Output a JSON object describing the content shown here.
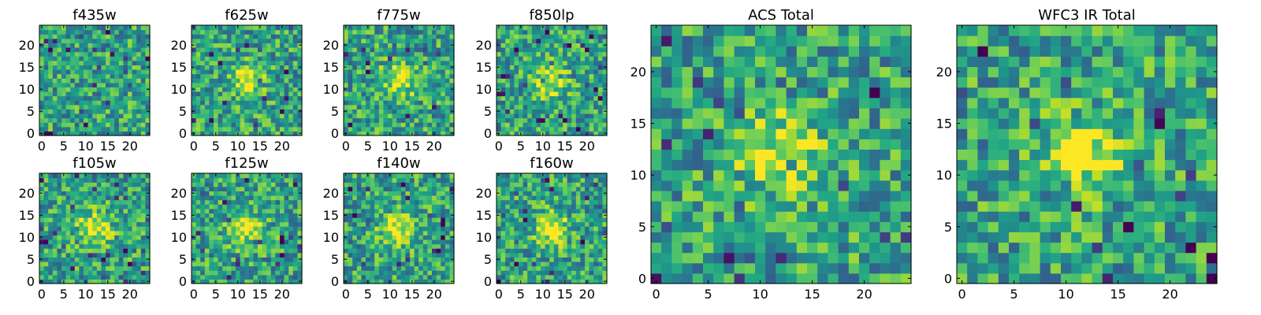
{
  "chart_data": [
    {
      "type": "heatmap",
      "title": "f435w",
      "colormap": "viridis",
      "grid_size": 25,
      "xlim": [
        0,
        24
      ],
      "ylim": [
        0,
        24
      ],
      "xticks": [
        0,
        5,
        10,
        15,
        20
      ],
      "yticks": [
        0,
        5,
        10,
        15,
        20
      ],
      "xtick_labels": [
        "0",
        "5",
        "10",
        "15",
        "20"
      ],
      "ytick_labels": [
        "0",
        "5",
        "10",
        "15",
        "20"
      ],
      "source_peak": null
    },
    {
      "type": "heatmap",
      "title": "f625w",
      "colormap": "viridis",
      "grid_size": 25,
      "xlim": [
        0,
        24
      ],
      "ylim": [
        0,
        24
      ],
      "xticks": [
        0,
        5,
        10,
        15,
        20
      ],
      "yticks": [
        0,
        5,
        10,
        15,
        20
      ],
      "xtick_labels": [
        "0",
        "5",
        "10",
        "15",
        "20"
      ],
      "ytick_labels": [
        "0",
        "5",
        "10",
        "15",
        "20"
      ],
      "source_peak": [
        12,
        12
      ]
    },
    {
      "type": "heatmap",
      "title": "f775w",
      "colormap": "viridis",
      "grid_size": 25,
      "xlim": [
        0,
        24
      ],
      "ylim": [
        0,
        24
      ],
      "xticks": [
        0,
        5,
        10,
        15,
        20
      ],
      "yticks": [
        0,
        5,
        10,
        15,
        20
      ],
      "xtick_labels": [
        "0",
        "5",
        "10",
        "15",
        "20"
      ],
      "ytick_labels": [
        "0",
        "5",
        "10",
        "15",
        "20"
      ],
      "source_peak": [
        12,
        12
      ]
    },
    {
      "type": "heatmap",
      "title": "f850lp",
      "colormap": "viridis",
      "grid_size": 25,
      "xlim": [
        0,
        24
      ],
      "ylim": [
        0,
        24
      ],
      "xticks": [
        0,
        5,
        10,
        15,
        20
      ],
      "yticks": [
        0,
        5,
        10,
        15,
        20
      ],
      "xtick_labels": [
        "0",
        "5",
        "10",
        "15",
        "20"
      ],
      "ytick_labels": [
        "0",
        "5",
        "10",
        "15",
        "20"
      ],
      "source_peak": [
        12,
        12
      ]
    },
    {
      "type": "heatmap",
      "title": "f105w",
      "colormap": "viridis",
      "grid_size": 25,
      "xlim": [
        0,
        24
      ],
      "ylim": [
        0,
        24
      ],
      "xticks": [
        0,
        5,
        10,
        15,
        20
      ],
      "yticks": [
        0,
        5,
        10,
        15,
        20
      ],
      "xtick_labels": [
        "0",
        "5",
        "10",
        "15",
        "20"
      ],
      "ytick_labels": [
        "0",
        "5",
        "10",
        "15",
        "20"
      ],
      "source_peak": [
        12,
        12
      ]
    },
    {
      "type": "heatmap",
      "title": "f125w",
      "colormap": "viridis",
      "grid_size": 25,
      "xlim": [
        0,
        24
      ],
      "ylim": [
        0,
        24
      ],
      "xticks": [
        0,
        5,
        10,
        15,
        20
      ],
      "yticks": [
        0,
        5,
        10,
        15,
        20
      ],
      "xtick_labels": [
        "0",
        "5",
        "10",
        "15",
        "20"
      ],
      "ytick_labels": [
        "0",
        "5",
        "10",
        "15",
        "20"
      ],
      "source_peak": [
        12,
        12
      ]
    },
    {
      "type": "heatmap",
      "title": "f140w",
      "colormap": "viridis",
      "grid_size": 25,
      "xlim": [
        0,
        24
      ],
      "ylim": [
        0,
        24
      ],
      "xticks": [
        0,
        5,
        10,
        15,
        20
      ],
      "yticks": [
        0,
        5,
        10,
        15,
        20
      ],
      "xtick_labels": [
        "0",
        "5",
        "10",
        "15",
        "20"
      ],
      "ytick_labels": [
        "0",
        "5",
        "10",
        "15",
        "20"
      ],
      "source_peak": [
        12,
        12
      ]
    },
    {
      "type": "heatmap",
      "title": "f160w",
      "colormap": "viridis",
      "grid_size": 25,
      "xlim": [
        0,
        24
      ],
      "ylim": [
        0,
        24
      ],
      "xticks": [
        0,
        5,
        10,
        15,
        20
      ],
      "yticks": [
        0,
        5,
        10,
        15,
        20
      ],
      "xtick_labels": [
        "0",
        "5",
        "10",
        "15",
        "20"
      ],
      "ytick_labels": [
        "0",
        "5",
        "10",
        "15",
        "20"
      ],
      "source_peak": [
        12,
        12
      ]
    },
    {
      "type": "heatmap",
      "title": "ACS Total",
      "colormap": "viridis",
      "grid_size": 25,
      "xlim": [
        0,
        24
      ],
      "ylim": [
        0,
        24
      ],
      "xticks": [
        0,
        5,
        10,
        15,
        20
      ],
      "yticks": [
        0,
        5,
        10,
        15,
        20
      ],
      "xtick_labels": [
        "0",
        "5",
        "10",
        "15",
        "20"
      ],
      "ytick_labels": [
        "0",
        "5",
        "10",
        "15",
        "20"
      ],
      "source_peak": [
        12,
        12
      ]
    },
    {
      "type": "heatmap",
      "title": "WFC3 IR Total",
      "colormap": "viridis",
      "grid_size": 25,
      "xlim": [
        0,
        24
      ],
      "ylim": [
        0,
        24
      ],
      "xticks": [
        0,
        5,
        10,
        15,
        20
      ],
      "yticks": [
        0,
        5,
        10,
        15,
        20
      ],
      "xtick_labels": [
        "0",
        "5",
        "10",
        "15",
        "20"
      ],
      "ytick_labels": [
        "0",
        "5",
        "10",
        "15",
        "20"
      ],
      "source_peak": [
        12,
        12
      ]
    }
  ]
}
